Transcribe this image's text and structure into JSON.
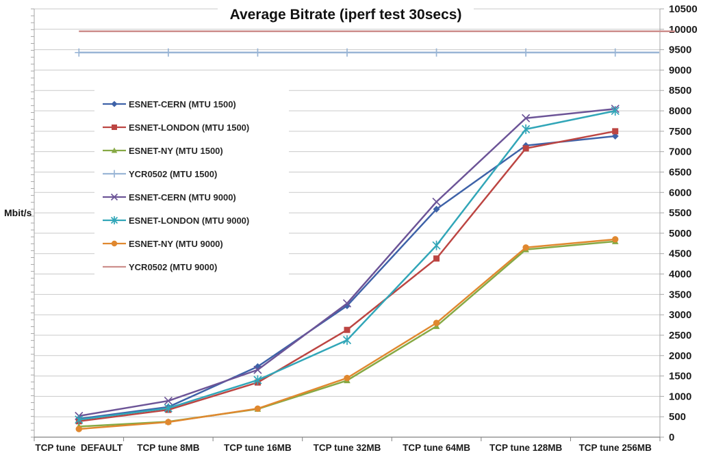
{
  "title": "Average Bitrate (iperf test 30secs)",
  "chart_data": {
    "type": "line",
    "title": "Average Bitrate (iperf test 30secs)",
    "ylabel": "Mbit/s",
    "xlabel": "",
    "ylim": [
      0,
      10500
    ],
    "ytick_step": 500,
    "yticks": [
      0,
      500,
      1000,
      1500,
      2000,
      2500,
      3000,
      3500,
      4000,
      4500,
      5000,
      5500,
      6000,
      6500,
      7000,
      7500,
      8000,
      8500,
      9000,
      9500,
      10000,
      10500
    ],
    "grid": true,
    "y_axis_side": "right",
    "legend_position": "inside-left",
    "categories": [
      "TCP tune  DEFAULT",
      "TCP tune 8MB",
      "TCP tune 16MB",
      "TCP tune 32MB",
      "TCP tune 64MB",
      "TCP tune 128MB",
      "TCP tune 256MB"
    ],
    "series": [
      {
        "name": "ESNET-CERN (MTU 1500)",
        "color": "#3E62A8",
        "marker": "diamond",
        "values": [
          450,
          740,
          1730,
          3220,
          5590,
          7150,
          7380
        ]
      },
      {
        "name": "ESNET-LONDON (MTU 1500)",
        "color": "#BC4542",
        "marker": "square",
        "values": [
          390,
          670,
          1340,
          2630,
          4380,
          7080,
          7500
        ]
      },
      {
        "name": "ESNET-NY (MTU 1500)",
        "color": "#86A944",
        "marker": "triangle",
        "values": [
          260,
          380,
          690,
          1390,
          2720,
          4600,
          4800
        ]
      },
      {
        "name": "YCR0502 (MTU 1500)",
        "color": "#99B5D5",
        "marker": "plus",
        "values": [
          9430,
          9430,
          9430,
          9430,
          9430,
          9430,
          9430
        ]
      },
      {
        "name": "ESNET-CERN (MTU 9000)",
        "color": "#6C5497",
        "marker": "x",
        "values": [
          520,
          890,
          1650,
          3280,
          5770,
          7820,
          8050
        ]
      },
      {
        "name": "ESNET-LONDON (MTU 9000)",
        "color": "#31A6B8",
        "marker": "asterisk",
        "values": [
          430,
          710,
          1400,
          2380,
          4700,
          7550,
          8000
        ]
      },
      {
        "name": "ESNET-NY (MTU 9000)",
        "color": "#E0882F",
        "marker": "circle",
        "values": [
          200,
          370,
          700,
          1450,
          2800,
          4650,
          4850
        ]
      },
      {
        "name": "YCR0502 (MTU 9000)",
        "color": "#CD8E8C",
        "marker": "none",
        "values": [
          9950,
          9950,
          9950,
          9950,
          9950,
          9950,
          9950
        ]
      }
    ],
    "colors": {
      "gridline": "#C9C9C9",
      "axis": "#A6A6A6",
      "axis_bottom": "#808080",
      "tick_label": "#1A1A1A"
    }
  }
}
